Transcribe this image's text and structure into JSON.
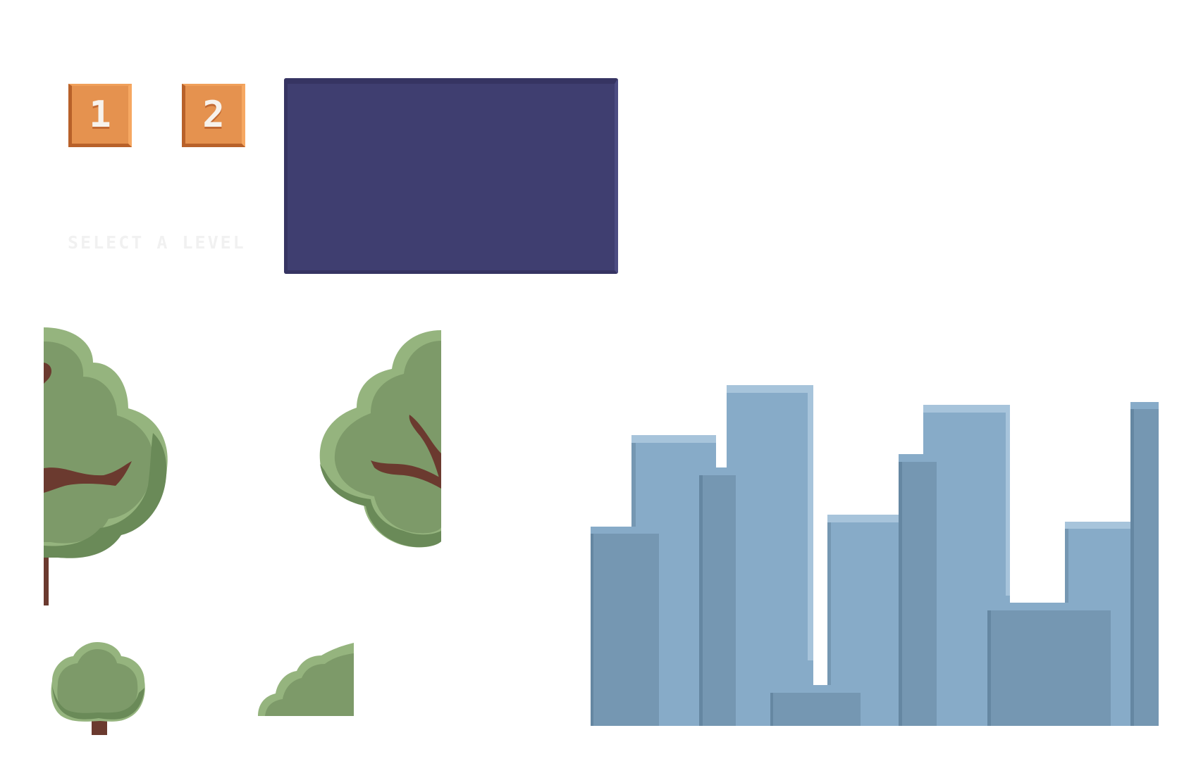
{
  "level_select": {
    "label": "SELECT A LEVEL",
    "levels": [
      {
        "number": "1"
      },
      {
        "number": "2"
      }
    ]
  },
  "colors": {
    "button": "#e5924f",
    "panel": "#3f3e70",
    "tree_light": "#95b47e",
    "tree_mid": "#7d9a69",
    "tree_dark": "#6a8a58",
    "trunk": "#6b3a2f",
    "building_light": "#87abc8",
    "building_dark": "#7597b2",
    "building_top": "#a7c4db"
  },
  "assets": {
    "icons": [
      "tree-icon",
      "bush-icon",
      "city-skyline-icon"
    ]
  }
}
